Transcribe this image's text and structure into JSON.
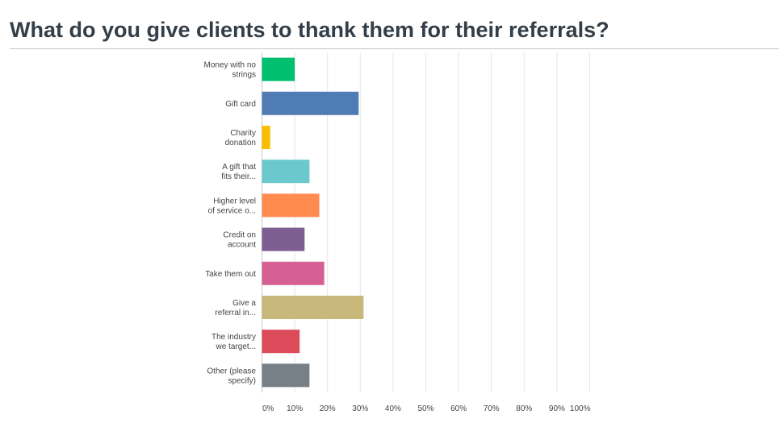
{
  "page_title": "What do you give clients to thank them for their referrals?",
  "chart_data": {
    "type": "bar",
    "orientation": "horizontal",
    "categories": [
      [
        "Money with no",
        "strings"
      ],
      [
        "Gift card"
      ],
      [
        "Charity",
        "donation"
      ],
      [
        "A gift that",
        "fits their..."
      ],
      [
        "Higher level",
        "of service o..."
      ],
      [
        "Credit on",
        "account"
      ],
      [
        "Take them out"
      ],
      [
        "Give a",
        "referral in..."
      ],
      [
        "The industry",
        "we target..."
      ],
      [
        "Other (please",
        "specify)"
      ]
    ],
    "values": [
      10,
      29.5,
      2.5,
      14.5,
      17.5,
      13,
      19,
      31,
      11.5,
      14.5
    ],
    "colors": [
      "#00bf6f",
      "#507cb6",
      "#f9be00",
      "#6bc8cd",
      "#ff8b4f",
      "#7d5e90",
      "#d65f93",
      "#c9b87c",
      "#dc4b5a",
      "#768086"
    ],
    "xlim": [
      0,
      100
    ],
    "x_ticks": [
      0,
      10,
      20,
      30,
      40,
      50,
      60,
      70,
      80,
      90,
      100
    ],
    "x_tick_labels": [
      "0%",
      "10%",
      "20%",
      "30%",
      "40%",
      "50%",
      "60%",
      "70%",
      "80%",
      "90%",
      "100%"
    ],
    "grid": true
  }
}
